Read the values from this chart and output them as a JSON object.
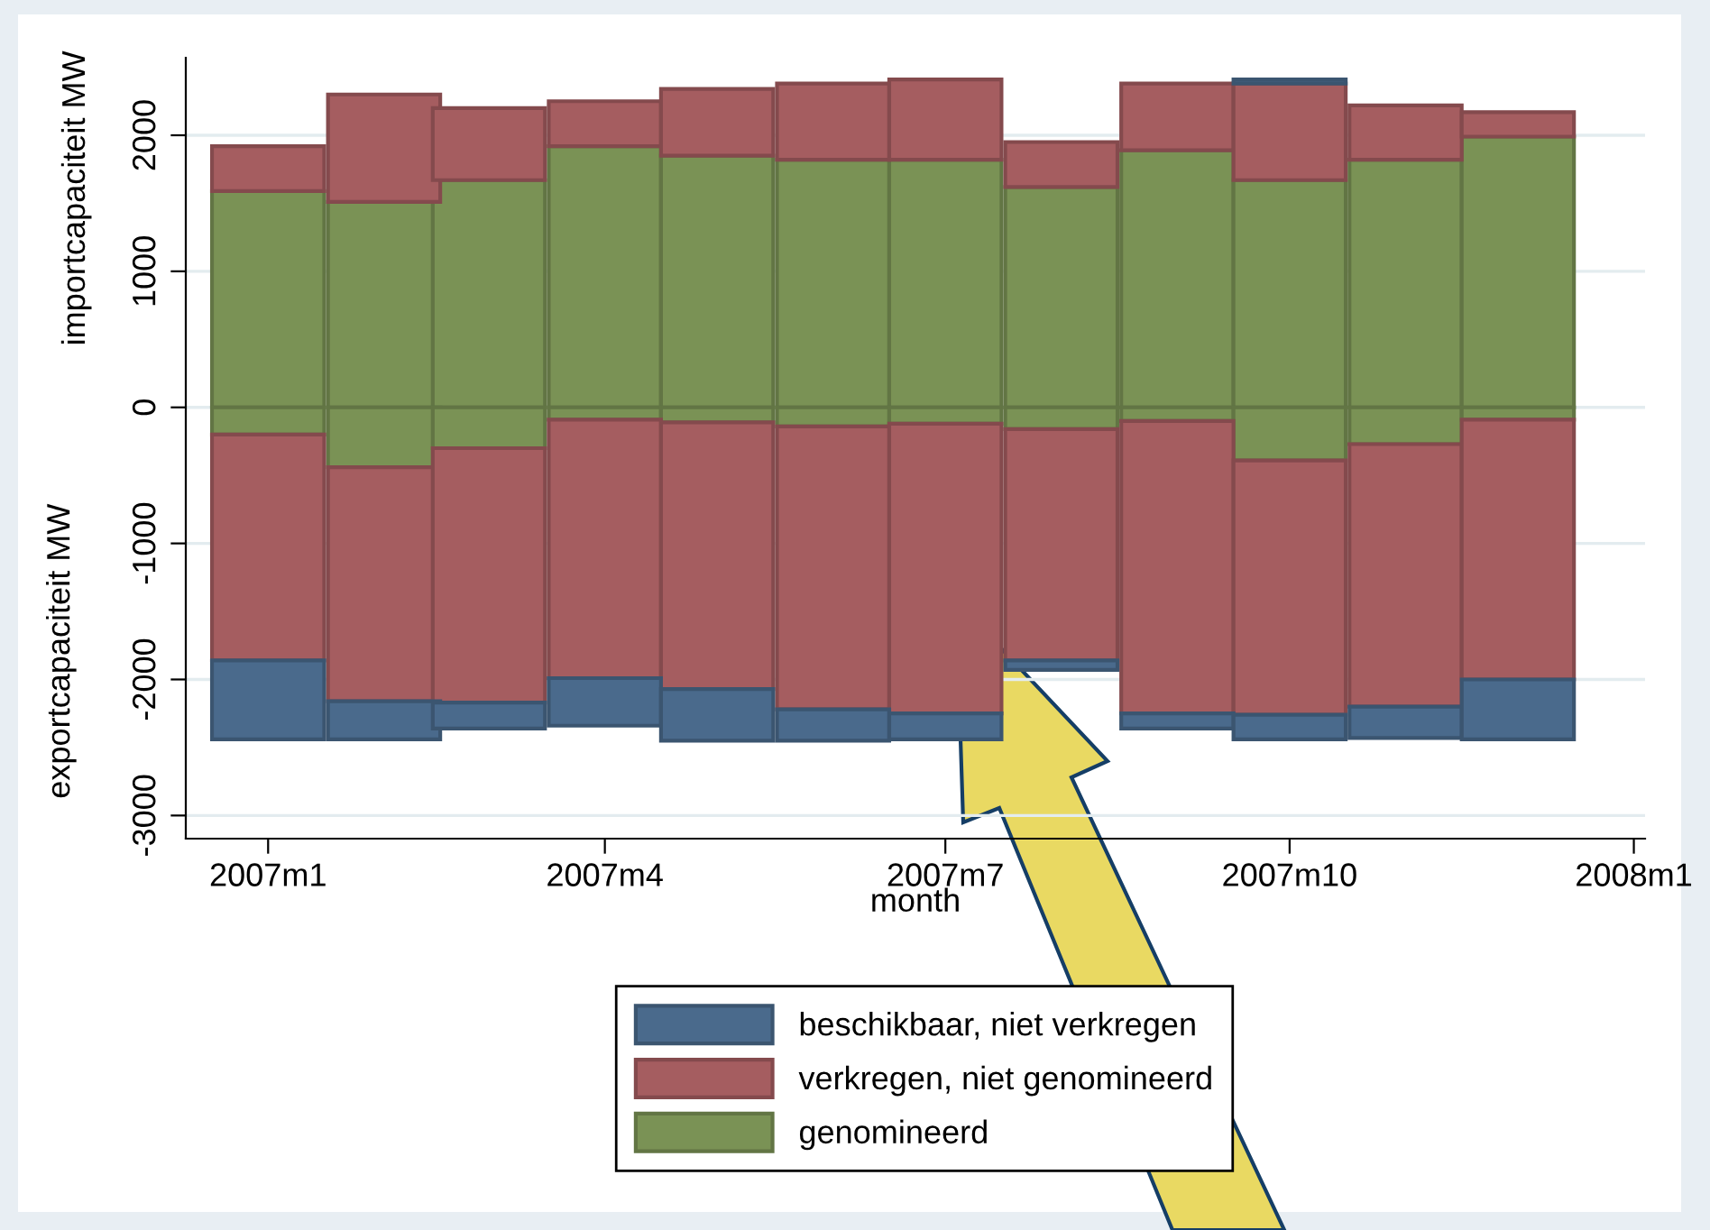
{
  "chart_data": {
    "type": "bar",
    "stacked": true,
    "x": [
      "2007-01",
      "2007-02",
      "2007-03",
      "2007-04",
      "2007-05",
      "2007-06",
      "2007-07",
      "2007-08",
      "2007-09",
      "2007-10",
      "2007-11",
      "2007-12"
    ],
    "xlabel": "month",
    "ylabel": "exportcapaciteit MW",
    "annotations": [
      "importcapaciteit MW"
    ],
    "xlim": [
      "2006-12-10",
      "2008-01-04"
    ],
    "xticks": [
      {
        "value": "2007-01",
        "label": "2007m1"
      },
      {
        "value": "2007-04",
        "label": "2007m4"
      },
      {
        "value": "2007-07",
        "label": "2007m7"
      },
      {
        "value": "2007-10",
        "label": "2007m10"
      },
      {
        "value": "2008-01",
        "label": "2008m1"
      }
    ],
    "ylim": [
      -3170,
      2570
    ],
    "yticks": [
      -3000,
      -2000,
      -1000,
      0,
      1000,
      2000
    ],
    "grid": "y",
    "legend": "bottom",
    "series": [
      {
        "color": "#7a9255",
        "values": [
          1590,
          1510,
          1670,
          1920,
          1850,
          1820,
          1820,
          1620,
          1890,
          1670,
          1820,
          1990
        ]
      },
      {
        "color": "#a55d60",
        "values": [
          330,
          790,
          530,
          330,
          490,
          560,
          590,
          330,
          490,
          710,
          400,
          180
        ]
      },
      {
        "color": "#4a6a8c",
        "values": [
          null,
          null,
          null,
          null,
          null,
          null,
          null,
          null,
          null,
          30,
          null,
          null
        ]
      },
      {
        "name": "genomineerd",
        "color": "#7a9255",
        "values": [
          -200,
          -440,
          -300,
          -90,
          -110,
          -140,
          -120,
          -160,
          -100,
          -390,
          -270,
          -90
        ]
      },
      {
        "name": "verkregen, niet genomineerd",
        "color": "#a55d60",
        "values": [
          -1660,
          -1720,
          -1870,
          -1900,
          -1960,
          -2080,
          -2130,
          -1700,
          -2150,
          -1870,
          -1930,
          -1910
        ]
      },
      {
        "name": "beschikbaar, niet verkregen",
        "color": "#4a6a8c",
        "values": [
          -580,
          -280,
          -190,
          -350,
          -380,
          -230,
          -190,
          -70,
          -110,
          -180,
          -230,
          -440
        ]
      }
    ]
  }
}
